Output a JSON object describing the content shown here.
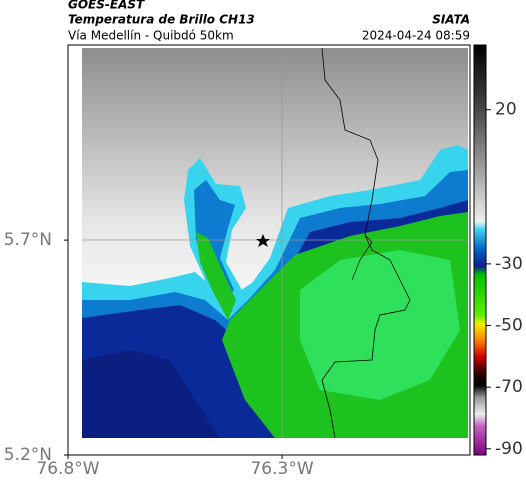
{
  "header": {
    "satellite": "GOES-EAST",
    "title": "Temperatura de Brillo CH13",
    "subtitle": "Vía Medellín - Quibdó 50km",
    "source": "SIATA",
    "datetime": "2024-04-24 08:59"
  },
  "map": {
    "xlim": [
      -76.8,
      -75.861
    ],
    "ylim": [
      5.2,
      6.154
    ],
    "xticks": [
      {
        "value": -76.8,
        "label": "76.8°W"
      },
      {
        "value": -76.3,
        "label": "76.3°W"
      }
    ],
    "yticks": [
      {
        "value": 5.7,
        "label": "5.7°N"
      },
      {
        "value": 5.2,
        "label": "5.2°N"
      }
    ]
  },
  "colorbar": {
    "lim": [
      -92,
      41
    ],
    "ticks": [
      20,
      -30,
      -50,
      -70,
      -90
    ]
  }
}
